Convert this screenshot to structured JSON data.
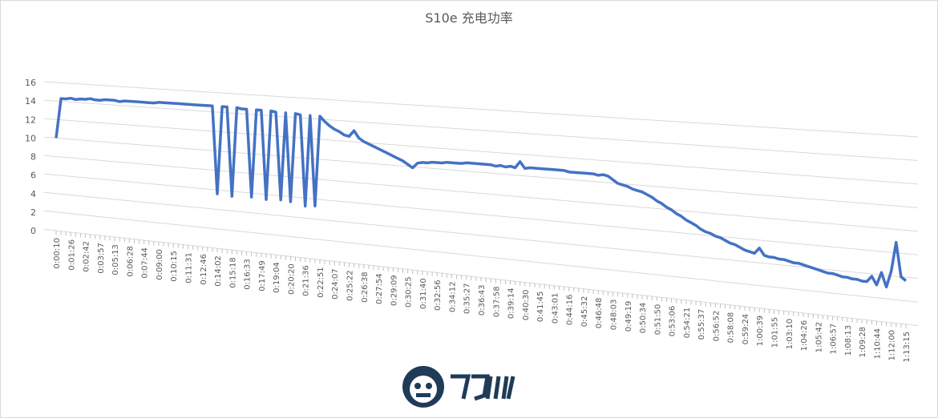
{
  "chart_data": {
    "type": "line",
    "title": "S10e 充电功率",
    "categories": [
      "0:00:10",
      null,
      null,
      "0:01:26",
      null,
      null,
      "0:02:42",
      null,
      null,
      "0:03:57",
      null,
      null,
      "0:05:13",
      null,
      null,
      "0:06:28",
      null,
      null,
      "0:07:44",
      null,
      null,
      "0:09:00",
      null,
      null,
      "0:10:15",
      null,
      null,
      "0:11:31",
      null,
      null,
      "0:12:46",
      null,
      null,
      "0:14:02",
      null,
      null,
      "0:15:18",
      null,
      null,
      "0:16:33",
      null,
      null,
      "0:17:49",
      null,
      null,
      "0:19:04",
      null,
      null,
      "0:20:20",
      null,
      null,
      "0:21:36",
      null,
      null,
      "0:22:51",
      null,
      null,
      "0:24:07",
      null,
      null,
      "0:25:22",
      null,
      null,
      "0:26:38",
      null,
      null,
      "0:27:54",
      null,
      null,
      "0:29:09",
      null,
      null,
      "0:30:25",
      null,
      null,
      "0:31:40",
      null,
      null,
      "0:32:56",
      null,
      null,
      "0:34:12",
      null,
      null,
      "0:35:27",
      null,
      null,
      "0:36:43",
      null,
      null,
      "0:37:58",
      null,
      null,
      "0:39:14",
      null,
      null,
      "0:40:30",
      null,
      null,
      "0:41:45",
      null,
      null,
      "0:43:01",
      null,
      null,
      "0:44:16",
      null,
      null,
      "0:45:32",
      null,
      null,
      "0:46:48",
      null,
      null,
      "0:48:03",
      null,
      null,
      "0:49:19",
      null,
      null,
      "0:50:34",
      null,
      null,
      "0:51:50",
      null,
      null,
      "0:53:06",
      null,
      null,
      "0:54:21",
      null,
      null,
      "0:55:37",
      null,
      null,
      "0:56:52",
      null,
      null,
      "0:58:08",
      null,
      null,
      "0:59:24",
      null,
      null,
      "1:00:39",
      null,
      null,
      "1:01:55",
      null,
      null,
      "1:03:10",
      null,
      null,
      "1:04:26",
      null,
      null,
      "1:05:42",
      null,
      null,
      "1:06:57",
      null,
      null,
      "1:08:13",
      null,
      null,
      "1:09:28",
      null,
      null,
      "1:10:44",
      null,
      null,
      "1:12:00",
      null,
      null,
      "1:13:15"
    ],
    "values": [
      10,
      14.3,
      14.3,
      14.4,
      14.3,
      14.4,
      14.4,
      14.5,
      14.4,
      14.4,
      14.5,
      14.5,
      14.5,
      14.4,
      14.5,
      14.5,
      14.5,
      14.5,
      14.5,
      14.5,
      14.5,
      14.6,
      14.6,
      14.6,
      14.6,
      14.6,
      14.6,
      14.6,
      14.6,
      14.6,
      14.6,
      14.6,
      14.6,
      5.6,
      14.6,
      14.6,
      5.5,
      14.6,
      14.5,
      14.5,
      5.6,
      14.5,
      14.5,
      5.5,
      14.5,
      14.4,
      5.6,
      14.4,
      5.5,
      14.4,
      14.3,
      5.2,
      14.3,
      5.3,
      14.3,
      13.8,
      13.4,
      13.1,
      12.9,
      12.6,
      12.5,
      13.1,
      12.4,
      12.1,
      11.9,
      11.7,
      11.5,
      11.3,
      11.1,
      10.9,
      10.7,
      10.5,
      10.2,
      9.9,
      10.4,
      10.5,
      10.5,
      10.6,
      10.6,
      10.6,
      10.7,
      10.7,
      10.7,
      10.7,
      10.8,
      10.8,
      10.8,
      10.8,
      10.8,
      10.8,
      10.7,
      10.8,
      10.7,
      10.8,
      10.7,
      11.3,
      10.7,
      10.8,
      10.8,
      10.8,
      10.8,
      10.8,
      10.8,
      10.8,
      10.8,
      10.7,
      10.7,
      10.7,
      10.7,
      10.7,
      10.7,
      10.6,
      10.7,
      10.6,
      10.3,
      10,
      9.9,
      9.8,
      9.6,
      9.5,
      9.4,
      9.2,
      9,
      8.7,
      8.5,
      8.2,
      8,
      7.7,
      7.5,
      7.2,
      7,
      6.8,
      6.5,
      6.3,
      6.2,
      6,
      5.9,
      5.7,
      5.5,
      5.4,
      5.2,
      5,
      4.9,
      4.8,
      5.3,
      4.7,
      4.6,
      4.6,
      4.5,
      4.5,
      4.4,
      4.3,
      4.3,
      4.2,
      4.1,
      4,
      3.9,
      3.8,
      3.7,
      3.7,
      3.6,
      3.5,
      3.5,
      3.4,
      3.4,
      3.3,
      3.3,
      3.8,
      3.1,
      4.2,
      3,
      4.4,
      6.9,
      4,
      3.7
    ],
    "color": "#4472c4",
    "ylim": [
      0,
      16
    ],
    "yticks": [
      0,
      2,
      4,
      6,
      8,
      10,
      12,
      14,
      16
    ],
    "grid": true
  }
}
